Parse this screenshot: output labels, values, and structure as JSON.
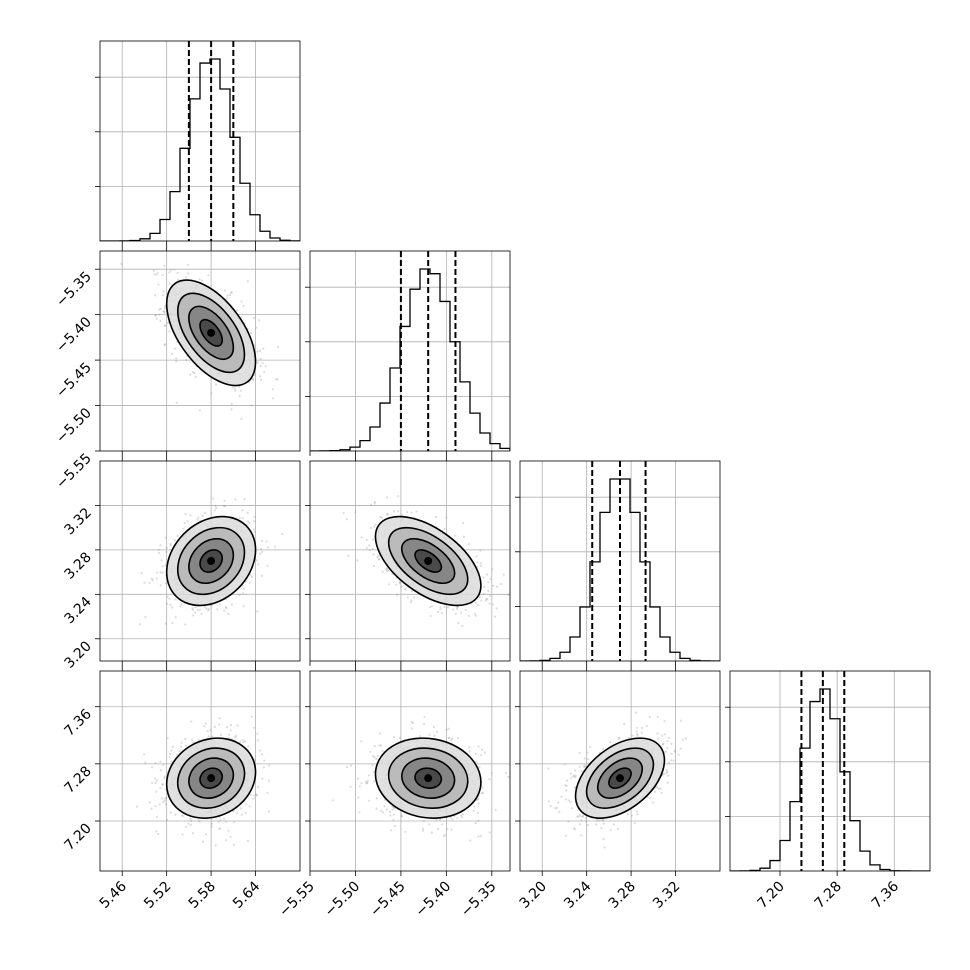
{
  "chart_data": {
    "type": "corner",
    "params": [
      {
        "mean": 5.58,
        "sd": 0.03,
        "range": [
          5.43,
          5.7
        ],
        "ticks": [
          5.46,
          5.52,
          5.58,
          5.64
        ],
        "tick_labels": [
          "5.46",
          "5.52",
          "5.58",
          "5.64"
        ],
        "quantiles": [
          5.55,
          5.58,
          5.61
        ]
      },
      {
        "mean": -5.42,
        "sd": 0.029,
        "range": [
          -5.55,
          -5.33
        ],
        "ticks": [
          -5.55,
          -5.5,
          -5.45,
          -5.4,
          -5.35
        ],
        "tick_labels": [
          "−5.55",
          "−5.50",
          "−5.45",
          "−5.40",
          "−5.35"
        ],
        "quantiles": [
          -5.45,
          -5.42,
          -5.39
        ]
      },
      {
        "mean": 3.27,
        "sd": 0.02,
        "range": [
          3.18,
          3.36
        ],
        "ticks": [
          3.2,
          3.24,
          3.28,
          3.32
        ],
        "tick_labels": [
          "3.20",
          "3.24",
          "3.28",
          "3.32"
        ],
        "quantiles": [
          3.245,
          3.27,
          3.293
        ]
      },
      {
        "mean": 7.26,
        "sd": 0.028,
        "range": [
          7.13,
          7.41
        ],
        "ticks": [
          7.2,
          7.28,
          7.36
        ],
        "tick_labels": [
          "7.20",
          "7.28",
          "7.36"
        ],
        "quantiles": [
          7.23,
          7.26,
          7.29
        ]
      }
    ],
    "correlations": {
      "0-1": -0.55,
      "0-2": 0.25,
      "0-3": 0.15,
      "1-2": -0.55,
      "1-3": -0.1,
      "2-3": 0.45
    },
    "histogram_bins": 20,
    "samples_per_panel": 900,
    "contour_levels_sigma": [
      0.5,
      1.0,
      1.5,
      2.0
    ],
    "grid": true,
    "xlabels": [
      "",
      "",
      "",
      ""
    ],
    "ylabels": [
      "",
      "",
      "",
      ""
    ]
  }
}
